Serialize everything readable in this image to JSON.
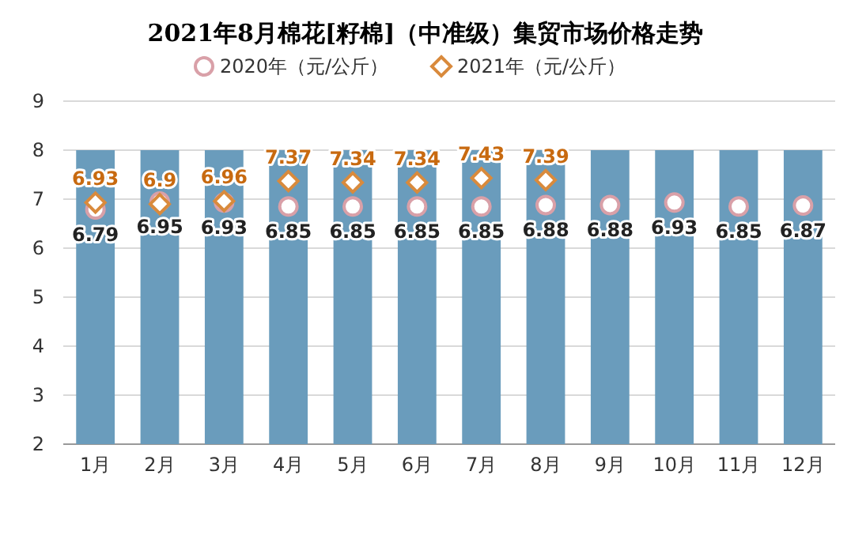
{
  "chart_data": {
    "type": "bar",
    "title": "2021年8月棉花[籽棉]（中准级）集贸市场价格走势",
    "categories": [
      "1月",
      "2月",
      "3月",
      "4月",
      "5月",
      "6月",
      "7月",
      "8月",
      "9月",
      "10月",
      "11月",
      "12月"
    ],
    "series": [
      {
        "color": "#6a9cbc",
        "values": [
          8,
          8,
          8,
          8,
          8,
          8,
          8,
          8,
          8,
          8,
          8,
          8
        ]
      },
      {
        "type": "scatter",
        "name": "2020年（元/公斤）",
        "color": "#d9a0a8",
        "marker": "circle",
        "data_labels": true,
        "values": [
          6.79,
          6.95,
          6.93,
          6.85,
          6.85,
          6.85,
          6.85,
          6.88,
          6.88,
          6.93,
          6.85,
          6.87
        ]
      },
      {
        "type": "scatter",
        "name": "2021年（元/公斤）",
        "color": "#d98a3c",
        "marker": "diamond",
        "data_labels": true,
        "values": [
          6.93,
          6.9,
          6.96,
          7.37,
          7.34,
          7.34,
          7.43,
          7.39,
          null,
          null,
          null,
          null
        ]
      }
    ],
    "ylim": [
      2,
      9
    ],
    "yticks": [
      2,
      3,
      4,
      5,
      6,
      7,
      8,
      9
    ],
    "grid": "y",
    "legend": "top"
  }
}
